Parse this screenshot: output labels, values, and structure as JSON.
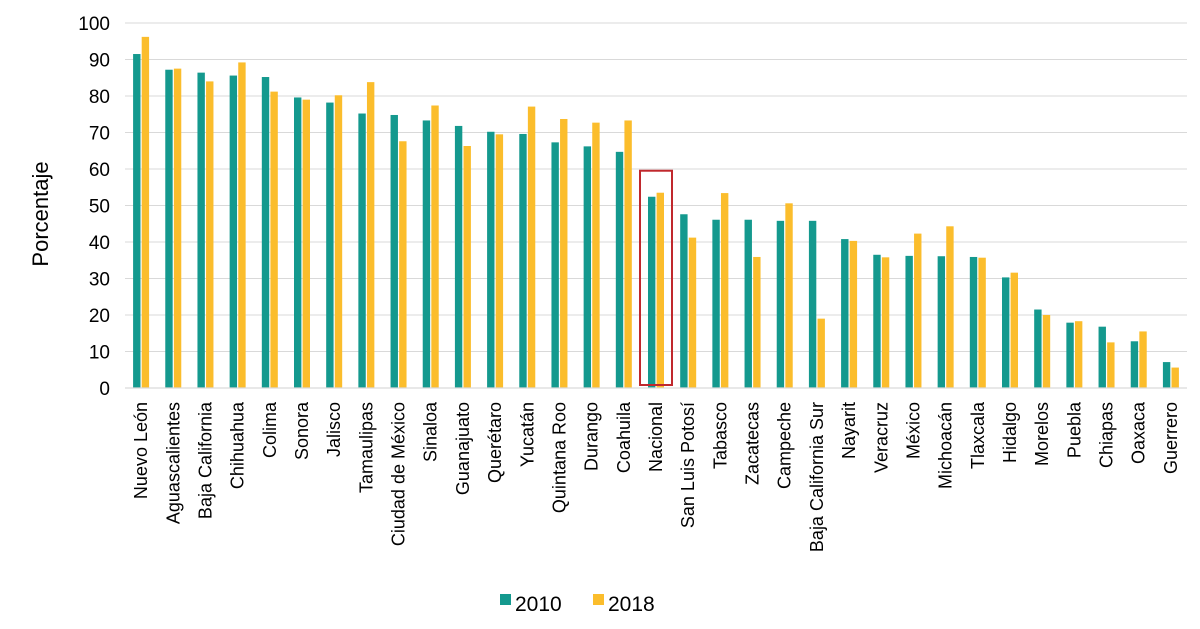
{
  "chart_data": {
    "type": "bar",
    "ylabel": "Porcentaje",
    "xlabel": "",
    "title": "",
    "ylim": [
      0,
      100
    ],
    "yticks": [
      0,
      10,
      20,
      30,
      40,
      50,
      60,
      70,
      80,
      90,
      100
    ],
    "grid": "horizontal",
    "legend_position": "bottom",
    "highlight_category": "Nacional",
    "highlight_color": "#c0282d",
    "categories": [
      "Nuevo León",
      "Aguascalientes",
      "Baja California",
      "Chihuahua",
      "Colima",
      "Sonora",
      "Jalisco",
      "Tamaulipas",
      "Ciudad de México",
      "Sinaloa",
      "Guanajuato",
      "Querétaro",
      "Yucatán",
      "Quintana Roo",
      "Durango",
      "Coahuila",
      "Nacional",
      "San Luis Potosí",
      "Tabasco",
      "Zacatecas",
      "Campeche",
      "Baja California Sur",
      "Nayarit",
      "Veracruz",
      "México",
      "Michoacán",
      "Tlaxcala",
      "Hidalgo",
      "Morelos",
      "Puebla",
      "Chiapas",
      "Oaxaca",
      "Guerrero"
    ],
    "series": [
      {
        "name": "2010",
        "color": "#14998e",
        "values": [
          91.5,
          87.2,
          86.4,
          85.6,
          85.2,
          79.6,
          78.2,
          75.2,
          74.8,
          73.3,
          71.8,
          70.2,
          69.6,
          67.3,
          66.2,
          64.7,
          52.4,
          47.6,
          46.1,
          46.1,
          45.8,
          45.8,
          40.8,
          36.5,
          36.2,
          36.1,
          35.9,
          30.3,
          21.5,
          17.9,
          16.8,
          12.8,
          7.1
        ]
      },
      {
        "name": "2018",
        "color": "#fbbd2c",
        "values": [
          96.2,
          87.5,
          84.0,
          89.2,
          81.2,
          79.0,
          80.2,
          83.8,
          67.6,
          77.4,
          66.3,
          69.5,
          77.1,
          73.7,
          72.7,
          73.3,
          53.5,
          41.2,
          53.4,
          35.9,
          50.6,
          19.0,
          40.3,
          35.8,
          42.3,
          44.3,
          35.7,
          31.6,
          20.0,
          18.3,
          12.5,
          15.5,
          5.6
        ]
      }
    ]
  }
}
